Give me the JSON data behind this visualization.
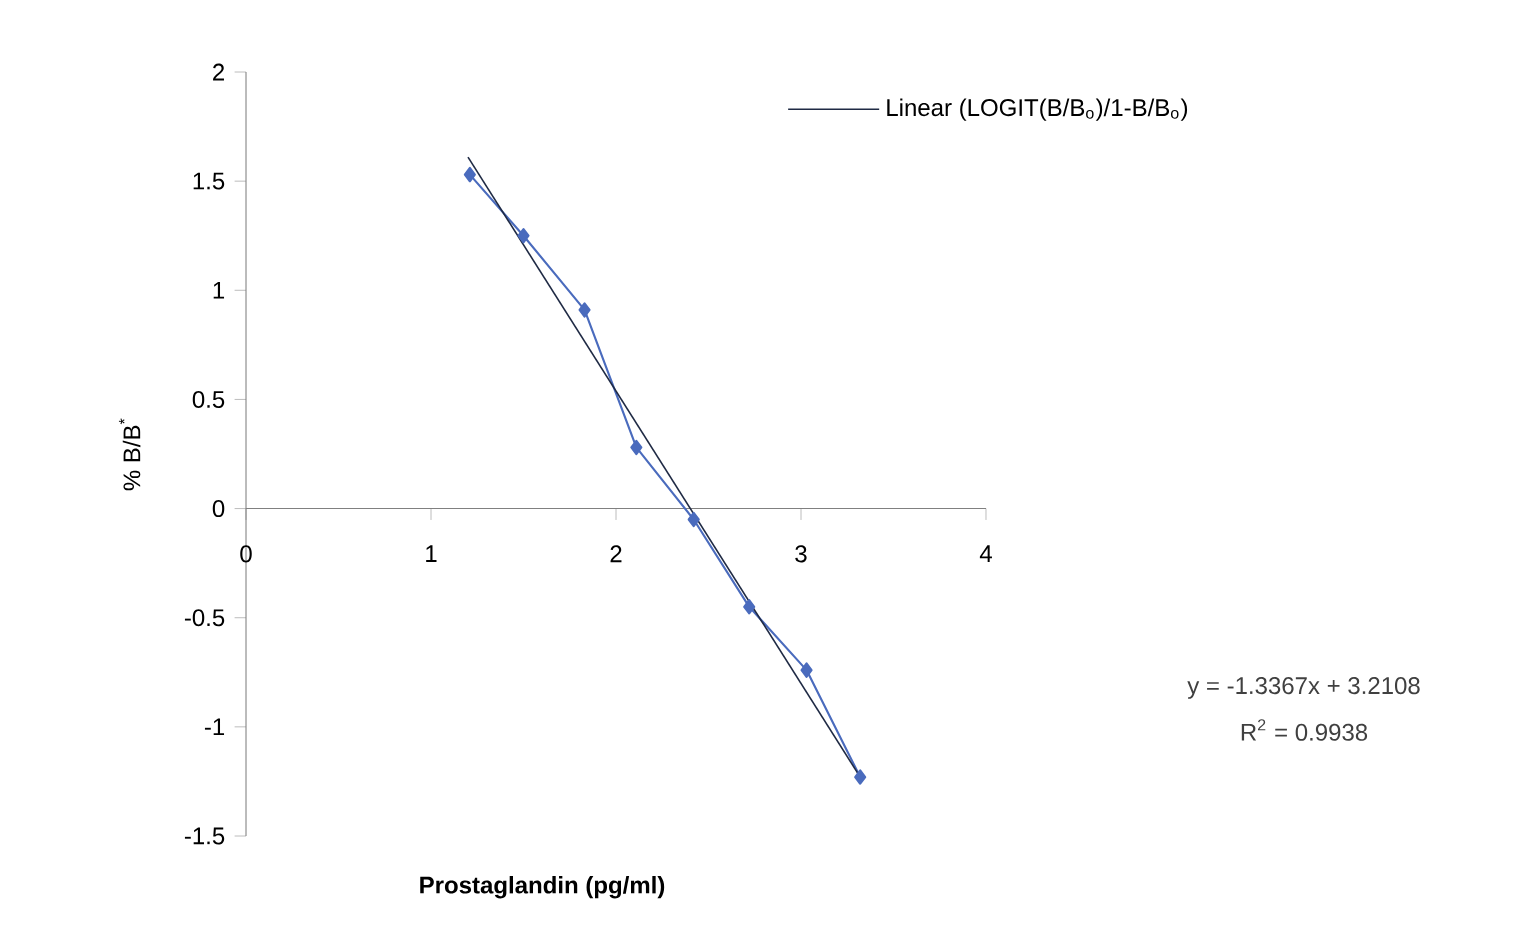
{
  "chart_data": {
    "type": "line",
    "xlabel": "Prostaglandin (pg/ml)",
    "ylabel": "% B/B$^{*}$",
    "xlim": [
      0,
      4
    ],
    "ylim": [
      -1.5,
      2
    ],
    "xticks": [
      0,
      1,
      2,
      3,
      4
    ],
    "yticks": [
      -1.5,
      -1,
      -0.5,
      0,
      0.5,
      1,
      1.5,
      2
    ],
    "legend": "top right",
    "grid": false,
    "annotations": [
      "y = -1.3367x + 3.2108",
      "R$^{2}$ = 0.9938"
    ],
    "series": [
      {
        "color": "#4a6bbd",
        "marker": "diamond",
        "x": [
          1.21,
          1.5,
          1.83,
          2.11,
          2.42,
          2.72,
          3.03,
          3.32
        ],
        "values": [
          1.53,
          1.25,
          0.91,
          0.28,
          -0.05,
          -0.45,
          -0.74,
          -1.23
        ]
      },
      {
        "name": "Linear (LOGIT(B/B$_{o}$)/1-B/B$_{o}$)",
        "color": "#1f2a44",
        "marker": "none",
        "x": [
          1.2,
          3.32
        ],
        "values": [
          1.61,
          -1.23
        ]
      }
    ]
  }
}
